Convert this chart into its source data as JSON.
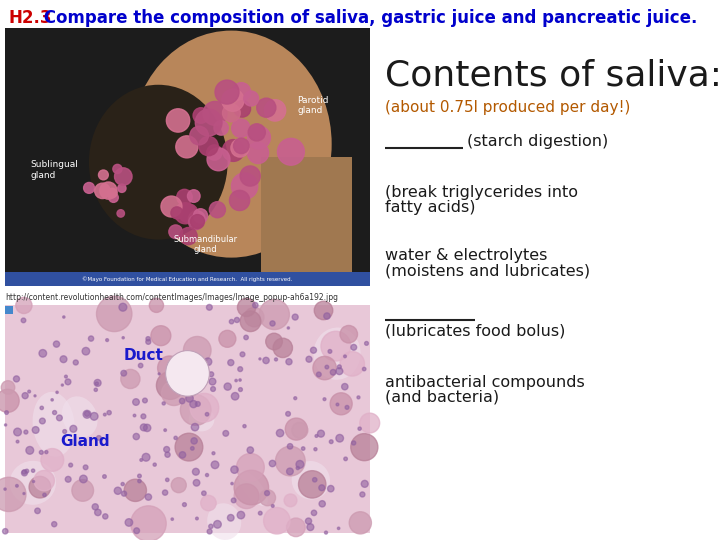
{
  "title_prefix": "H2.3",
  "title_prefix_color": "#cc0000",
  "title_text": " Compare the composition of saliva, gastric juice and pancreatic juice.",
  "title_color": "#0000cc",
  "title_fontsize": 12,
  "contents_title": "Contents of saliva:",
  "contents_title_fontsize": 26,
  "contents_title_color": "#1a1a1a",
  "subtitle": "(about 0.75l produced per day!)",
  "subtitle_color": "#b35900",
  "subtitle_fontsize": 11,
  "item_fontsize": 11.5,
  "item_color": "#1a1a1a",
  "background_color": "#ffffff",
  "url_text": "http://content.revolutionhealth.com/contentImages/Images/Image_popup-ah6a192.jpg",
  "copyright_text": "©Mayo Foundation for Medical Education and Research.  All rights reserved.",
  "duct_label": "Duct",
  "gland_label": "Gland",
  "label_color": "#1a1acc"
}
